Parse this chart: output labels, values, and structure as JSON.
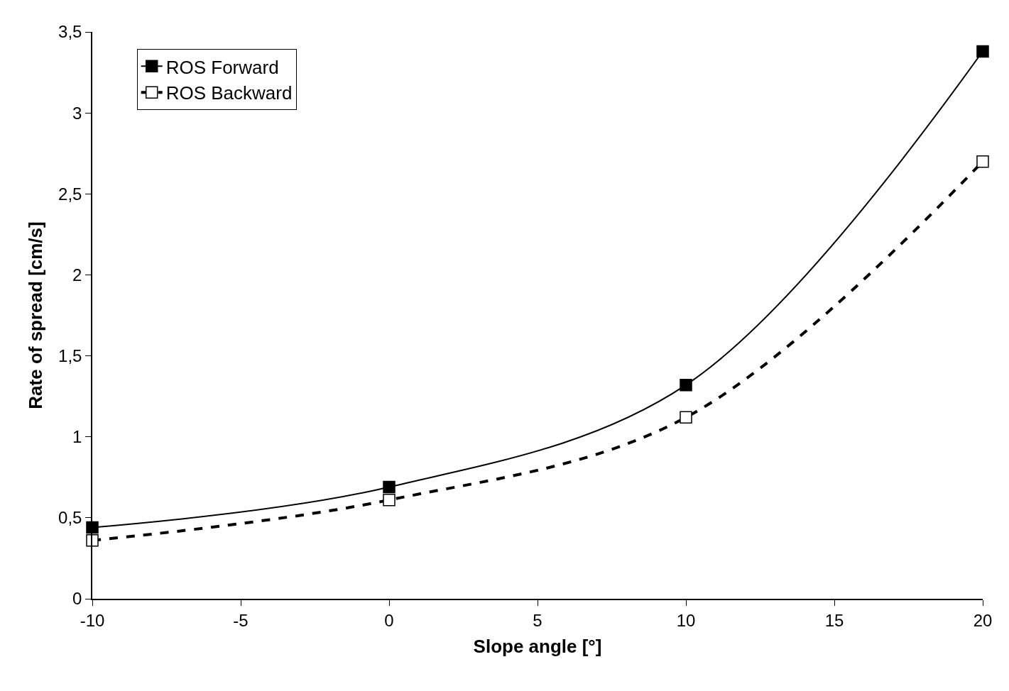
{
  "chart_data": {
    "type": "line",
    "xlabel": "Slope angle [°]",
    "ylabel": "Rate of spread [cm/s]",
    "x": [
      -10,
      0,
      10,
      20
    ],
    "series": [
      {
        "name": "ROS Forward",
        "color": "#000000",
        "values": [
          0.44,
          0.69,
          1.32,
          3.38
        ],
        "marker": "square",
        "line_style": "solid"
      },
      {
        "name": "ROS Backward",
        "color": "#000000",
        "values": [
          0.36,
          0.61,
          1.12,
          2.7
        ],
        "colors": [
          "#ffffff",
          "#ffffff",
          "#ffffff",
          "#ffffff"
        ],
        "marker": "square",
        "line_style": "dashed"
      }
    ],
    "xlim": [
      -10,
      20
    ],
    "xticks": [
      -10,
      -5,
      0,
      5,
      10,
      15,
      20
    ],
    "ylim": [
      0,
      3.5
    ],
    "yticks": [
      0,
      {
        "value": 0.5,
        "label": "0,5"
      },
      1,
      {
        "value": 1.5,
        "label": "1,5"
      },
      2,
      {
        "value": 2.5,
        "label": "2,5"
      },
      3,
      {
        "value": 3.5,
        "label": "3,5"
      }
    ],
    "legend": "top left"
  }
}
